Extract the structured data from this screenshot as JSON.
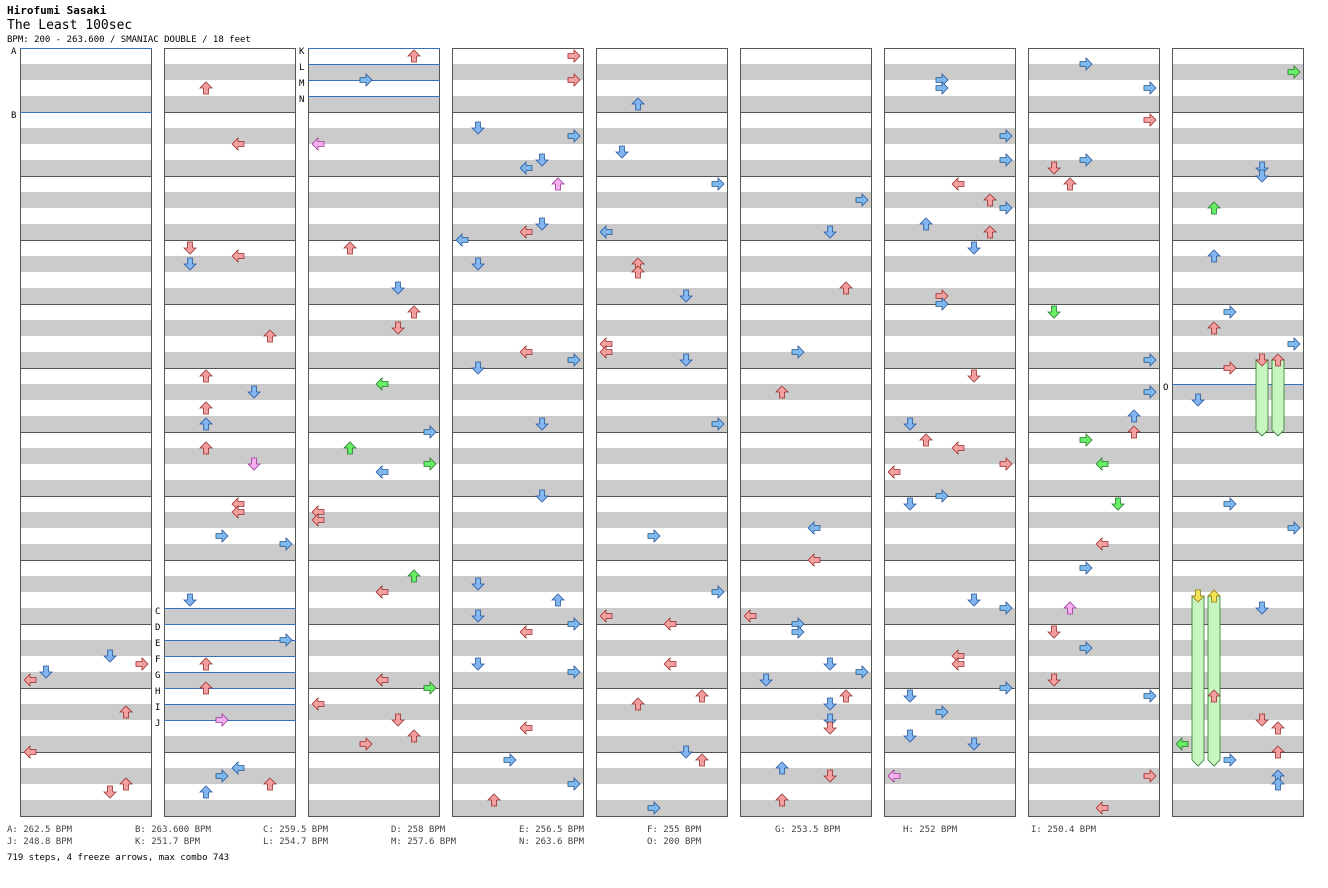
{
  "header": {
    "artist": "Hirofumi Sasaki",
    "title": "The Least 100sec",
    "info": "BPM: 200 - 263.600 / SMANIAC DOUBLE / 18 feet"
  },
  "colors": {
    "red_arrow": "#f5a0a0",
    "blue_arrow": "#7fb7ee",
    "green_arrow": "#66ee66",
    "pink_arrow": "#f4b0ee",
    "yellow_arrow": "#f5e35a",
    "freeze_body": "#c8f5c0",
    "stripe_gray": "#cbcbcb",
    "bpm_line": "#3a6ec0"
  },
  "bpm_markers": [
    {
      "id": "A",
      "bpm": "262.5 BPM"
    },
    {
      "id": "B",
      "bpm": "263.600 BPM"
    },
    {
      "id": "C",
      "bpm": "259.5 BPM"
    },
    {
      "id": "D",
      "bpm": "258 BPM"
    },
    {
      "id": "E",
      "bpm": "256.5 BPM"
    },
    {
      "id": "F",
      "bpm": "255 BPM"
    },
    {
      "id": "G",
      "bpm": "253.5 BPM"
    },
    {
      "id": "H",
      "bpm": "252 BPM"
    },
    {
      "id": "I",
      "bpm": "250.4 BPM"
    },
    {
      "id": "J",
      "bpm": "248.8 BPM"
    },
    {
      "id": "K",
      "bpm": "251.7 BPM"
    },
    {
      "id": "L",
      "bpm": "254.7 BPM"
    },
    {
      "id": "M",
      "bpm": "257.6 BPM"
    },
    {
      "id": "N",
      "bpm": "263.6 BPM"
    },
    {
      "id": "O",
      "bpm": "200 BPM"
    }
  ],
  "summary": "719 steps, 4 freeze arrows, max combo 743"
}
